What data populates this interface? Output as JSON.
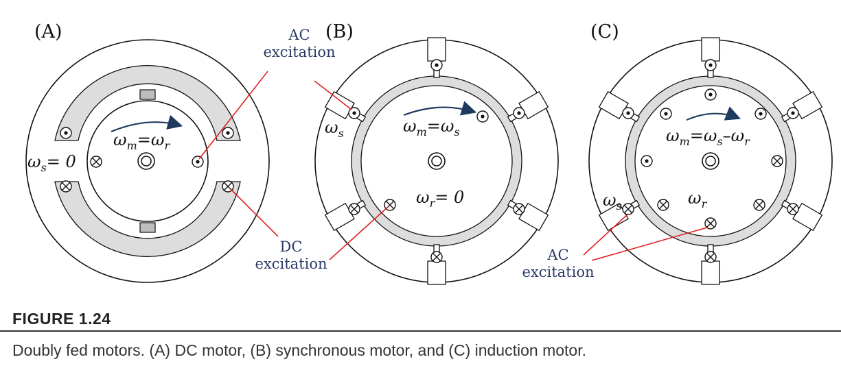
{
  "panels": {
    "a": {
      "label": "(A)",
      "omega_s": "ω",
      "omega_s_sub": "s",
      "omega_s_value": "= 0",
      "omega_m": "ω",
      "omega_m_sub": "m",
      "eq": "=",
      "omega_r": "ω",
      "omega_r_sub": "r"
    },
    "b": {
      "label": "(B)",
      "omega_s": "ω",
      "omega_s_sub": "s",
      "omega_m": "ω",
      "omega_m_sub": "m",
      "eq": "=",
      "rhs": "ω",
      "rhs_sub": "s",
      "omega_r": "ω",
      "omega_r_sub": "r",
      "omega_r_value": "= 0"
    },
    "c": {
      "label": "(C)",
      "omega_s": "ω",
      "omega_s_sub": "s",
      "omega_m": "ω",
      "omega_m_sub": "m",
      "eq": "=",
      "rhs1": "ω",
      "rhs1_sub": "s",
      "minus": "–",
      "rhs2": "ω",
      "rhs2_sub": "r",
      "omega_r": "ω",
      "omega_r_sub": "r"
    }
  },
  "callouts": {
    "ac_top_line1": "AC",
    "ac_top_line2": "excitation",
    "dc_line1": "DC",
    "dc_line2": "excitation",
    "ac_bottom_line1": "AC",
    "ac_bottom_line2": "excitation"
  },
  "colors": {
    "stator_fill": "#dddddd",
    "callout_line": "#e02020",
    "arrow": "#1f3a5f",
    "callout_text": "#2b3a66"
  },
  "caption": {
    "title": "FIGURE 1.24",
    "text": "Doubly fed motors. (A) DC motor, (B) synchronous motor, and (C) induction motor."
  }
}
